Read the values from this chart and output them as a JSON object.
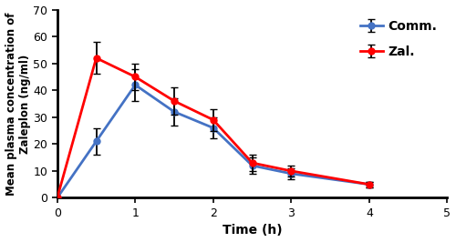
{
  "time": [
    0,
    0.5,
    1.0,
    1.5,
    2.0,
    2.5,
    3.0,
    4.0
  ],
  "comm_mean": [
    0,
    21,
    42,
    32,
    26,
    12,
    9,
    5
  ],
  "comm_err": [
    0,
    5,
    6,
    5,
    4,
    3,
    2,
    1
  ],
  "zal_mean": [
    0,
    52,
    45,
    36,
    29,
    13,
    10,
    5
  ],
  "zal_err": [
    0,
    6,
    5,
    5,
    4,
    3,
    2,
    1
  ],
  "comm_color": "#4472C4",
  "zal_color": "#FF0000",
  "xlabel": "Time (h)",
  "ylabel": "Mean plasma concentration of\nZaleplon (ng/ml)",
  "xlim": [
    0,
    5
  ],
  "ylim": [
    0,
    70
  ],
  "yticks": [
    0,
    10,
    20,
    30,
    40,
    50,
    60,
    70
  ],
  "xticks": [
    0,
    1,
    2,
    3,
    4,
    5
  ],
  "legend_comm": "Comm.",
  "legend_zal": "Zal.",
  "marker": "o",
  "linewidth": 2,
  "markersize": 5,
  "capsize": 3,
  "elinewidth": 1.3,
  "figsize": [
    5.0,
    2.66
  ],
  "dpi": 100
}
